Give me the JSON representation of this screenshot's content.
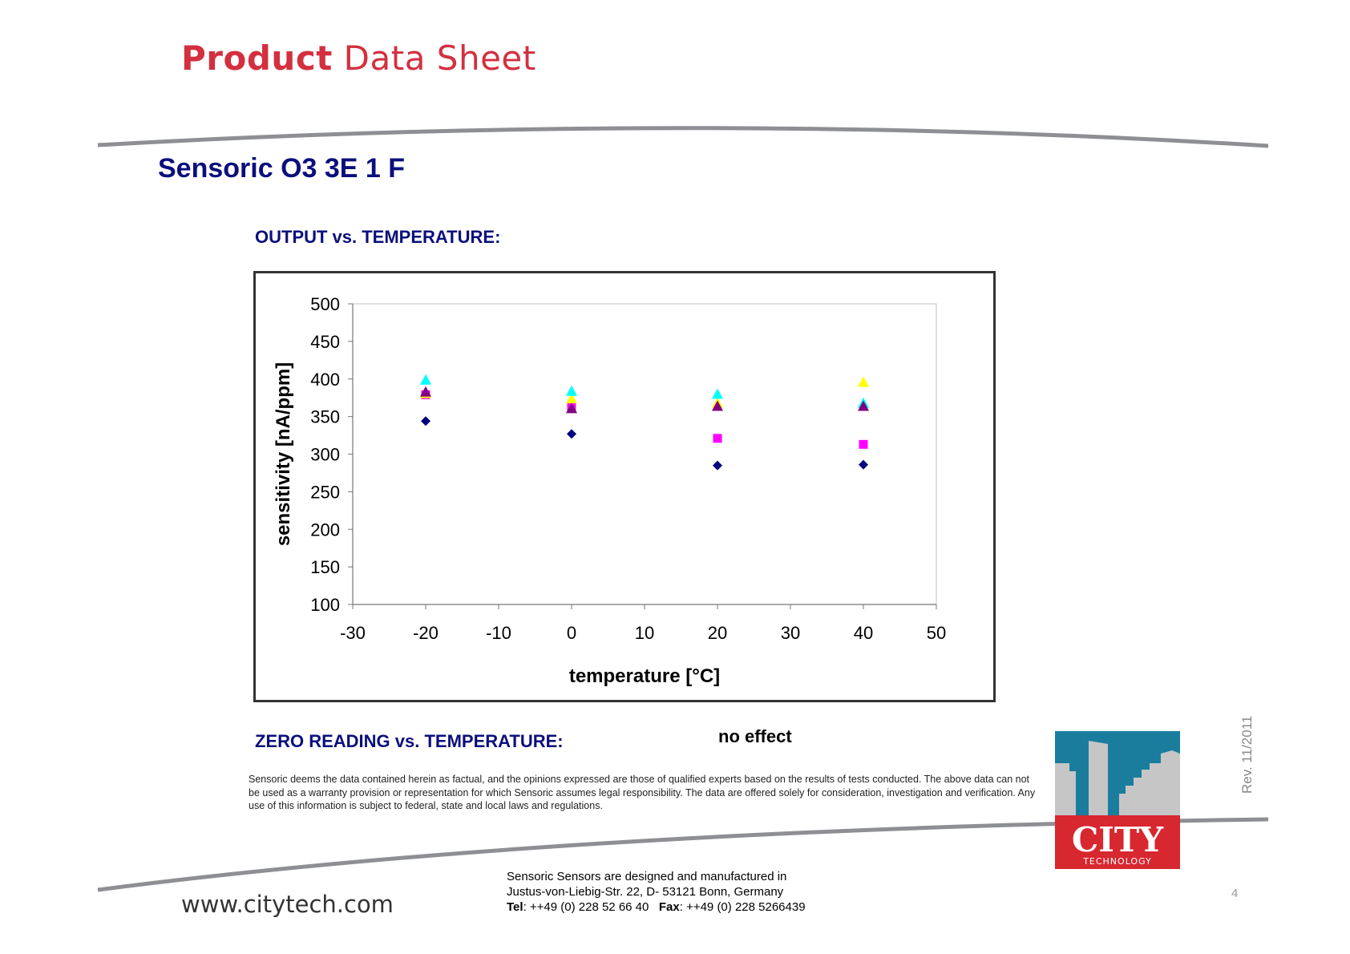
{
  "header": {
    "title_bold": "Product",
    "title_rest": "Data Sheet"
  },
  "product_title": "Sensoric O3 3E 1 F",
  "output_section": {
    "heading": "OUTPUT vs. TEMPERATURE:"
  },
  "zero_section": {
    "heading": "ZERO READING vs. TEMPERATURE:",
    "value": "no effect"
  },
  "chart_data": {
    "type": "scatter",
    "xlabel": "temperature [°C]",
    "ylabel": "sensitivity [nA/ppm]",
    "xlim": [
      -30,
      50
    ],
    "ylim": [
      100,
      500
    ],
    "x_ticks": [
      "-30",
      "-20",
      "-10",
      "0",
      "10",
      "20",
      "30",
      "40",
      "50"
    ],
    "y_ticks": [
      "500",
      "450",
      "400",
      "350",
      "300",
      "250",
      "200",
      "150",
      "100"
    ],
    "grid": false,
    "legend": "none",
    "series": [
      {
        "marker": "diamond",
        "color": "#00007f",
        "x": [
          -20,
          0,
          20,
          40
        ],
        "y": [
          344,
          327,
          285,
          286
        ]
      },
      {
        "marker": "square",
        "color": "#ff00ff",
        "x": [
          -20,
          0,
          20,
          40
        ],
        "y": [
          379,
          364,
          321,
          313
        ]
      },
      {
        "marker": "triangle",
        "color": "#ffff00",
        "x": [
          -20,
          0,
          20,
          40
        ],
        "y": [
          381,
          374,
          368,
          396
        ]
      },
      {
        "marker": "triangle",
        "color": "#00ffff",
        "x": [
          -20,
          0,
          20,
          40
        ],
        "y": [
          399,
          384,
          380,
          368
        ]
      },
      {
        "marker": "triangle",
        "color": "#800080",
        "x": [
          -20,
          0,
          20,
          40
        ],
        "y": [
          383,
          361,
          364,
          364
        ]
      }
    ]
  },
  "disclaimer": "Sensoric deems the data contained herein as factual, and the opinions expressed are those of qualified experts based on the results of tests conducted. The above data can not be used as a warranty provision or representation for which Sensoric assumes legal responsibility. The data are offered solely for consideration, investigation and verification. Any use of this information is subject to federal, state and local laws and regulations.",
  "footer": {
    "website": "www.citytech.com",
    "address_line1": "Sensoric Sensors are designed and manufactured in",
    "address_line2": "Justus-von-Liebig-Str. 22, D- 53121 Bonn, Germany",
    "tel_label": "Tel",
    "tel_value": ": ++49 (0) 228 52 66 40",
    "fax_label": "Fax",
    "fax_value": ": ++49 (0) 228 5266439",
    "page_number": "4",
    "revision": "Rev. 11/2011"
  },
  "logo": {
    "text": "CITY",
    "subtext": "TECHNOLOGY",
    "colors": {
      "sky": "#1a7d9e",
      "buildings": "#c6c6c6",
      "red": "#d7272f"
    }
  }
}
